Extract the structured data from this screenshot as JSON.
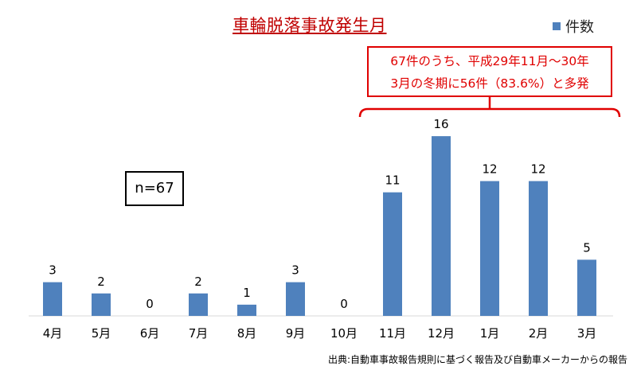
{
  "chart_data": {
    "type": "bar",
    "title": "車輪脱落事故発生月",
    "categories": [
      "4月",
      "5月",
      "6月",
      "7月",
      "8月",
      "9月",
      "10月",
      "11月",
      "12月",
      "1月",
      "2月",
      "3月"
    ],
    "series": [
      {
        "name": "件数",
        "values": [
          3,
          2,
          0,
          2,
          1,
          3,
          0,
          11,
          16,
          12,
          12,
          5
        ]
      }
    ],
    "ylim": [
      0,
      17
    ],
    "grid": false,
    "legend_position": "top-right",
    "colors": {
      "bar": "#4f81bd",
      "title": "#c00000",
      "callout": "#e00000"
    },
    "annotations": {
      "callout_lines": [
        "67件のうち、平成29年11月～30年",
        "3月の冬期に56件（83.6%）と多発"
      ],
      "sample_size": "n=67",
      "source": "出典:自動車事故報告規則に基づく報告及び自動車メーカーからの報告"
    }
  }
}
